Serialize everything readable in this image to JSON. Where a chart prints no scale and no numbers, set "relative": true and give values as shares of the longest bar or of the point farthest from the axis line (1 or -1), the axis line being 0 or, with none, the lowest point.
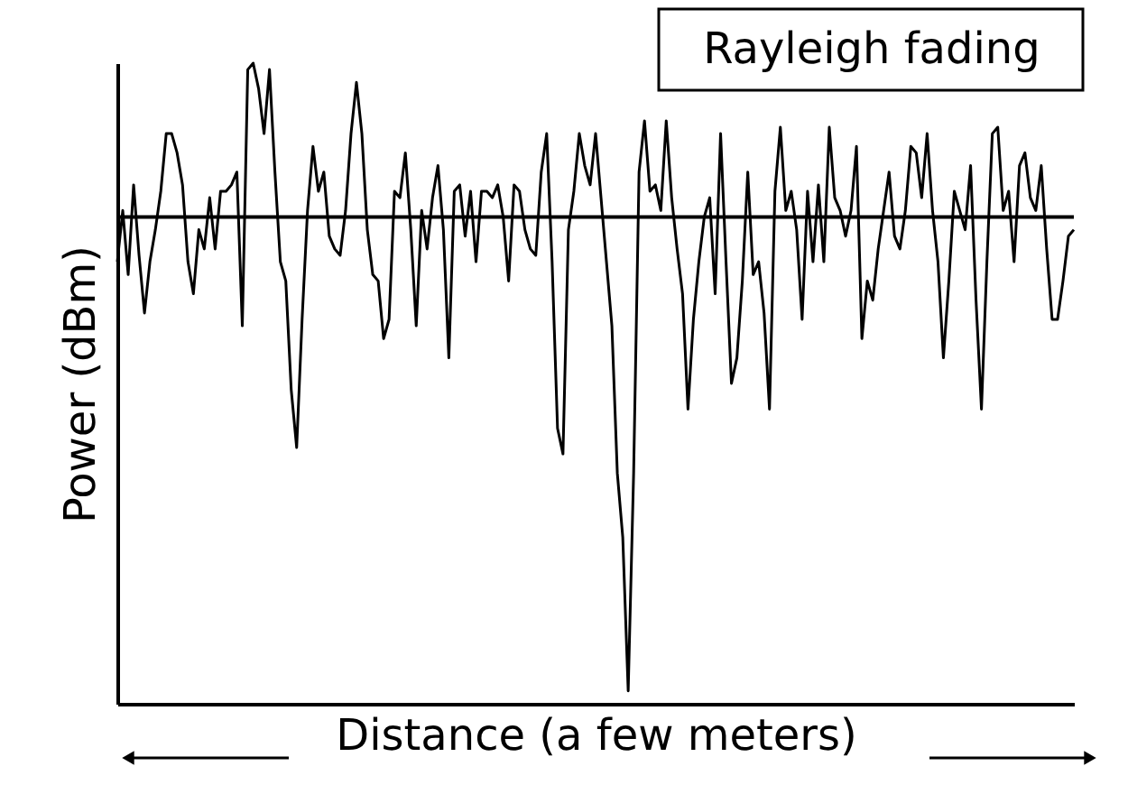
{
  "chart_data": {
    "type": "line",
    "relative": true,
    "xlabel": "Distance (a few meters)",
    "ylabel": "Power (dBm)",
    "annotations": [
      "Rayleigh fading"
    ],
    "ref_lines": [
      {
        "axis": "y",
        "value": 0.76,
        "color": "#000000"
      }
    ],
    "categories": [
      null,
      null,
      null,
      null,
      null,
      null,
      null,
      null,
      null,
      null,
      null,
      null,
      null,
      null,
      null,
      null,
      null,
      null,
      null,
      null,
      null,
      null,
      null,
      null,
      null,
      null,
      null,
      null,
      null,
      null,
      null,
      null,
      null,
      null,
      null,
      null,
      null,
      null,
      null,
      null,
      null,
      null,
      null,
      null,
      null,
      null,
      null,
      null,
      null,
      null,
      null,
      null,
      null,
      null,
      null,
      null,
      null,
      null,
      null,
      null,
      null,
      null,
      null,
      null,
      null,
      null,
      null,
      null,
      null,
      null,
      null,
      null,
      null,
      null,
      null,
      null,
      null,
      null,
      null,
      null,
      null,
      null,
      null,
      null,
      null,
      null,
      null,
      null,
      null,
      null,
      null,
      null,
      null,
      null,
      null,
      null,
      null,
      null,
      null,
      null,
      null,
      null,
      null,
      null,
      null,
      null,
      null,
      null,
      null,
      null,
      null,
      null,
      null,
      null,
      null,
      null,
      null,
      null,
      null,
      null,
      null,
      null,
      null,
      null,
      null,
      null,
      null,
      null,
      null,
      null,
      null,
      null,
      null,
      null,
      null,
      null,
      null,
      null,
      null,
      null,
      null,
      null,
      null,
      null,
      null,
      null,
      null,
      null,
      null,
      null,
      null,
      null,
      null,
      null,
      null,
      null,
      null,
      null,
      null,
      null,
      null,
      null,
      null,
      null,
      null,
      null,
      null,
      null,
      null,
      null,
      null,
      null,
      null,
      null,
      null,
      null,
      null
    ],
    "series": [
      {
        "color": "#000000",
        "values": [
          0.69,
          0.77,
          0.67,
          0.81,
          0.7,
          0.61,
          0.69,
          0.74,
          0.8,
          0.89,
          0.89,
          0.86,
          0.81,
          0.69,
          0.64,
          0.74,
          0.71,
          0.79,
          0.71,
          0.8,
          0.8,
          0.81,
          0.83,
          0.59,
          0.99,
          1.0,
          0.96,
          0.89,
          0.99,
          0.83,
          0.69,
          0.66,
          0.49,
          0.4,
          0.6,
          0.77,
          0.87,
          0.8,
          0.83,
          0.73,
          0.71,
          0.7,
          0.77,
          0.89,
          0.97,
          0.89,
          0.74,
          0.67,
          0.66,
          0.57,
          0.6,
          0.8,
          0.79,
          0.86,
          0.74,
          0.59,
          0.77,
          0.71,
          0.79,
          0.84,
          0.74,
          0.54,
          0.8,
          0.81,
          0.73,
          0.8,
          0.69,
          0.8,
          0.8,
          0.79,
          0.81,
          0.76,
          0.66,
          0.81,
          0.8,
          0.74,
          0.71,
          0.7,
          0.83,
          0.89,
          0.69,
          0.43,
          0.39,
          0.74,
          0.8,
          0.89,
          0.84,
          0.81,
          0.89,
          0.79,
          0.69,
          0.59,
          0.36,
          0.26,
          0.02,
          0.36,
          0.83,
          0.91,
          0.8,
          0.81,
          0.77,
          0.91,
          0.79,
          0.71,
          0.64,
          0.46,
          0.6,
          0.69,
          0.76,
          0.79,
          0.64,
          0.89,
          0.69,
          0.5,
          0.54,
          0.66,
          0.83,
          0.67,
          0.69,
          0.61,
          0.46,
          0.8,
          0.9,
          0.77,
          0.8,
          0.74,
          0.6,
          0.8,
          0.69,
          0.81,
          0.69,
          0.9,
          0.79,
          0.77,
          0.73,
          0.77,
          0.87,
          0.57,
          0.66,
          0.63,
          0.71,
          0.77,
          0.83,
          0.73,
          0.71,
          0.77,
          0.87,
          0.86,
          0.79,
          0.89,
          0.77,
          0.69,
          0.54,
          0.66,
          0.8,
          0.77,
          0.74,
          0.84,
          0.63,
          0.46,
          0.69,
          0.89,
          0.9,
          0.77,
          0.8,
          0.69,
          0.84,
          0.86,
          0.79,
          0.77,
          0.84,
          0.71,
          0.6,
          0.6,
          0.66,
          0.73,
          0.74
        ]
      }
    ]
  }
}
